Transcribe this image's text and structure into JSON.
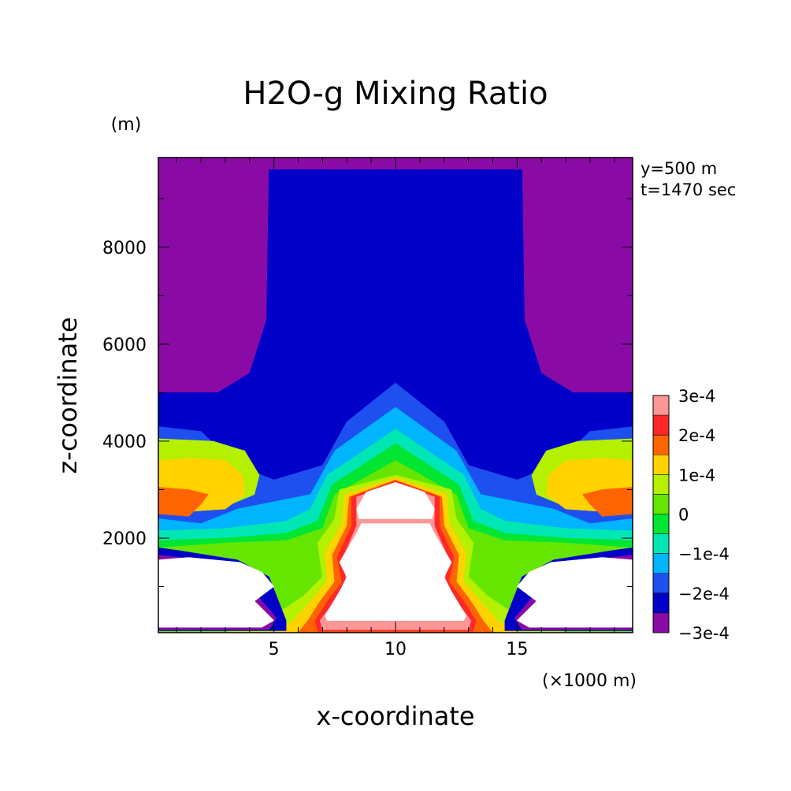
{
  "chart_data": {
    "type": "contour",
    "title": "H2O-g Mixing Ratio",
    "xlabel": "x-coordinate",
    "ylabel": "z-coordinate",
    "x_unit": "(×1000 m)",
    "y_unit": "(m)",
    "annotations": [
      "y=500 m",
      "t=1470 sec"
    ],
    "xlim": [
      0.25,
      19.75
    ],
    "ylim": [
      50,
      9850
    ],
    "x_ticks": [
      5,
      10,
      15
    ],
    "y_ticks": [
      2000,
      4000,
      6000,
      8000
    ],
    "levels": [
      -0.0003,
      -0.00025,
      -0.0002,
      -0.00015,
      -0.0001,
      -5e-05,
      0,
      5e-05,
      0.0001,
      0.00015,
      0.0002,
      0.00025,
      0.0003
    ],
    "colorbar_labels": [
      "3e-4",
      "2e-4",
      "1e-4",
      "0",
      "−1e-4",
      "−2e-4",
      "−3e-4"
    ],
    "colors": [
      "#8a0aa6",
      "#0000c8",
      "#1e50f0",
      "#00b4ff",
      "#00e6b4",
      "#00e632",
      "#64e600",
      "#b4f000",
      "#ffd200",
      "#ff6400",
      "#ff2828",
      "#ff9696"
    ],
    "grid": false,
    "legend": "colorbar-right",
    "regions": [
      {
        "level": 0,
        "points": [
          [
            0.25,
            50
          ],
          [
            19.75,
            50
          ],
          [
            19.75,
            9850
          ],
          [
            0.25,
            9850
          ]
        ]
      },
      {
        "level": 1,
        "points": [
          [
            0.25,
            50
          ],
          [
            19.75,
            50
          ],
          [
            19.75,
            5000
          ],
          [
            17.3,
            5000
          ],
          [
            16,
            5400
          ],
          [
            15.3,
            6500
          ],
          [
            15.2,
            9600
          ],
          [
            4.8,
            9600
          ],
          [
            4.7,
            6500
          ],
          [
            4,
            5400
          ],
          [
            2.7,
            5000
          ],
          [
            0.25,
            5000
          ]
        ]
      },
      {
        "level": 2,
        "points": [
          [
            0.25,
            50
          ],
          [
            19.75,
            50
          ],
          [
            19.75,
            4300
          ],
          [
            18,
            4200
          ],
          [
            16.5,
            3500
          ],
          [
            15,
            3200
          ],
          [
            13,
            3500
          ],
          [
            12,
            4400
          ],
          [
            10,
            5200
          ],
          [
            8,
            4400
          ],
          [
            7,
            3500
          ],
          [
            5,
            3200
          ],
          [
            3.5,
            3500
          ],
          [
            2,
            4200
          ],
          [
            0.25,
            4300
          ]
        ]
      },
      {
        "level": 3,
        "points": [
          [
            0.25,
            50
          ],
          [
            19.75,
            50
          ],
          [
            19.75,
            2400
          ],
          [
            18,
            2300
          ],
          [
            16.5,
            2600
          ],
          [
            13.5,
            2900
          ],
          [
            12.5,
            3800
          ],
          [
            10,
            4700
          ],
          [
            7.5,
            3800
          ],
          [
            6.5,
            2900
          ],
          [
            3.5,
            2600
          ],
          [
            2,
            2300
          ],
          [
            0.25,
            2400
          ]
        ]
      },
      {
        "level": 4,
        "points": [
          [
            0.25,
            50
          ],
          [
            19.75,
            50
          ],
          [
            19.75,
            2150
          ],
          [
            17,
            2200
          ],
          [
            14.5,
            2350
          ],
          [
            13.5,
            2600
          ],
          [
            12.8,
            3300
          ],
          [
            10,
            4250
          ],
          [
            7.2,
            3300
          ],
          [
            6.5,
            2600
          ],
          [
            5.5,
            2350
          ],
          [
            3,
            2200
          ],
          [
            0.25,
            2150
          ]
        ]
      },
      {
        "level": 5,
        "points": [
          [
            0.25,
            50
          ],
          [
            19.75,
            50
          ],
          [
            19.75,
            1950
          ],
          [
            17,
            2000
          ],
          [
            14.5,
            2100
          ],
          [
            13.2,
            2350
          ],
          [
            12.6,
            3100
          ],
          [
            10,
            3950
          ],
          [
            7.4,
            3100
          ],
          [
            6.8,
            2350
          ],
          [
            5.5,
            2100
          ],
          [
            3,
            2000
          ],
          [
            0.25,
            1950
          ]
        ]
      },
      {
        "level": 6,
        "points": [
          [
            0.25,
            50
          ],
          [
            19.75,
            50
          ],
          [
            19.75,
            1800
          ],
          [
            17,
            1900
          ],
          [
            14.5,
            1950
          ],
          [
            13,
            2200
          ],
          [
            12.5,
            2900
          ],
          [
            10,
            3600
          ],
          [
            7.5,
            2900
          ],
          [
            7,
            2200
          ],
          [
            5.5,
            1950
          ],
          [
            3,
            1900
          ],
          [
            0.25,
            1800
          ]
        ]
      },
      {
        "level": 7,
        "points": [
          [
            3,
            50
          ],
          [
            17,
            50
          ],
          [
            15,
            400
          ],
          [
            13.8,
            800
          ],
          [
            13,
            1200
          ],
          [
            13.2,
            1900
          ],
          [
            12.5,
            2400
          ],
          [
            12.3,
            3000
          ],
          [
            10,
            3300
          ],
          [
            7.7,
            3000
          ],
          [
            7.5,
            2400
          ],
          [
            6.8,
            1900
          ],
          [
            7,
            1200
          ],
          [
            6.2,
            800
          ],
          [
            5,
            400
          ]
        ]
      },
      {
        "level": 8,
        "points": [
          [
            5,
            50
          ],
          [
            15,
            50
          ],
          [
            14.2,
            300
          ],
          [
            13.5,
            700
          ],
          [
            12.8,
            1100
          ],
          [
            12.9,
            1700
          ],
          [
            12.2,
            2300
          ],
          [
            12.1,
            2900
          ],
          [
            10,
            3250
          ],
          [
            7.9,
            2900
          ],
          [
            7.8,
            2300
          ],
          [
            7.1,
            1700
          ],
          [
            7.2,
            1100
          ],
          [
            6.5,
            700
          ],
          [
            5.8,
            300
          ]
        ]
      },
      {
        "level": 9,
        "points": [
          [
            6,
            50
          ],
          [
            14,
            50
          ],
          [
            13.6,
            300
          ],
          [
            13.1,
            700
          ],
          [
            12.5,
            1100
          ],
          [
            12.6,
            1650
          ],
          [
            12,
            2250
          ],
          [
            11.9,
            2850
          ],
          [
            10,
            3200
          ],
          [
            8.1,
            2850
          ],
          [
            8,
            2250
          ],
          [
            7.4,
            1650
          ],
          [
            7.5,
            1100
          ],
          [
            6.9,
            700
          ],
          [
            6.4,
            300
          ]
        ]
      },
      {
        "level": 10,
        "points": [
          [
            6.8,
            80
          ],
          [
            13.2,
            80
          ],
          [
            13.3,
            300
          ],
          [
            12.8,
            700
          ],
          [
            12.2,
            1100
          ],
          [
            12.4,
            1600
          ],
          [
            11.8,
            2250
          ],
          [
            11.8,
            2850
          ],
          [
            10,
            3180
          ],
          [
            8.2,
            2850
          ],
          [
            8.2,
            2250
          ],
          [
            7.6,
            1600
          ],
          [
            7.8,
            1100
          ],
          [
            7.2,
            700
          ],
          [
            6.7,
            300
          ]
        ]
      },
      {
        "level": 11,
        "points": [
          [
            7,
            110
          ],
          [
            13,
            110
          ],
          [
            13.1,
            300
          ],
          [
            12.5,
            700
          ],
          [
            12,
            1100
          ],
          [
            12.2,
            1550
          ],
          [
            11.6,
            2250
          ],
          [
            11.6,
            2850
          ],
          [
            10,
            3140
          ],
          [
            8.4,
            2850
          ],
          [
            8.4,
            2250
          ],
          [
            7.8,
            1550
          ],
          [
            8,
            1100
          ],
          [
            7.5,
            700
          ],
          [
            6.9,
            300
          ]
        ]
      },
      {
        "level": 7,
        "points": [
          [
            0.25,
            2800
          ],
          [
            1.5,
            2650
          ],
          [
            3,
            2650
          ],
          [
            4.2,
            2900
          ],
          [
            4.4,
            3300
          ],
          [
            3.8,
            3800
          ],
          [
            2.5,
            4000
          ],
          [
            0.25,
            4050
          ]
        ]
      },
      {
        "level": 8,
        "points": [
          [
            0.25,
            2750
          ],
          [
            1.5,
            2550
          ],
          [
            3,
            2600
          ],
          [
            3.8,
            2900
          ],
          [
            3.7,
            3300
          ],
          [
            3,
            3600
          ],
          [
            1.5,
            3650
          ],
          [
            0.25,
            3600
          ]
        ]
      },
      {
        "level": 9,
        "points": [
          [
            0.25,
            2500
          ],
          [
            1.5,
            2450
          ],
          [
            2,
            2700
          ],
          [
            2.3,
            2900
          ],
          [
            1.5,
            3000
          ],
          [
            0.25,
            3050
          ]
        ]
      },
      {
        "level": 7,
        "points": [
          [
            19.75,
            2800
          ],
          [
            18.5,
            2650
          ],
          [
            17,
            2650
          ],
          [
            15.8,
            2900
          ],
          [
            15.6,
            3300
          ],
          [
            16.2,
            3800
          ],
          [
            17.5,
            4000
          ],
          [
            19.75,
            4050
          ]
        ]
      },
      {
        "level": 8,
        "points": [
          [
            19.75,
            2750
          ],
          [
            18.5,
            2550
          ],
          [
            17,
            2600
          ],
          [
            16.2,
            2900
          ],
          [
            16.3,
            3300
          ],
          [
            17,
            3600
          ],
          [
            18.5,
            3650
          ],
          [
            19.75,
            3600
          ]
        ]
      },
      {
        "level": 9,
        "points": [
          [
            19.75,
            2500
          ],
          [
            18.5,
            2450
          ],
          [
            18,
            2700
          ],
          [
            17.7,
            2900
          ],
          [
            18.5,
            3000
          ],
          [
            19.75,
            3050
          ]
        ]
      },
      {
        "level": 1,
        "points": [
          [
            0.25,
            90
          ],
          [
            5.5,
            90
          ],
          [
            5.5,
            300
          ],
          [
            4.8,
            1200
          ],
          [
            3.5,
            1550
          ],
          [
            1,
            1750
          ],
          [
            0.25,
            1800
          ]
        ]
      },
      {
        "level": 0,
        "points": [
          [
            0.25,
            110
          ],
          [
            4.8,
            110
          ],
          [
            5.1,
            350
          ],
          [
            4,
            1000
          ],
          [
            3.4,
            1450
          ],
          [
            2,
            1550
          ],
          [
            0.25,
            1650
          ]
        ]
      },
      {
        "level": 1,
        "points": [
          [
            19.75,
            90
          ],
          [
            14.5,
            90
          ],
          [
            14.5,
            300
          ],
          [
            15.2,
            1200
          ],
          [
            16.5,
            1550
          ],
          [
            19,
            1750
          ],
          [
            19.75,
            1800
          ]
        ]
      },
      {
        "level": 0,
        "points": [
          [
            19.75,
            110
          ],
          [
            15.2,
            110
          ],
          [
            14.9,
            350
          ],
          [
            16,
            1000
          ],
          [
            16.6,
            1450
          ],
          [
            18,
            1550
          ],
          [
            19.75,
            1650
          ]
        ]
      }
    ],
    "blank_regions": [
      {
        "points": [
          [
            0.25,
            160
          ],
          [
            4.5,
            160
          ],
          [
            5,
            300
          ],
          [
            4.2,
            700
          ],
          [
            5,
            1000
          ],
          [
            4.5,
            1300
          ],
          [
            3.6,
            1500
          ],
          [
            1.5,
            1600
          ],
          [
            0.25,
            1550
          ]
        ]
      },
      {
        "points": [
          [
            19.75,
            160
          ],
          [
            15.5,
            160
          ],
          [
            15,
            300
          ],
          [
            15.8,
            700
          ],
          [
            15,
            1000
          ],
          [
            15.5,
            1300
          ],
          [
            16.4,
            1500
          ],
          [
            18.5,
            1600
          ],
          [
            19.75,
            1550
          ]
        ]
      },
      {
        "points": [
          [
            7.2,
            300
          ],
          [
            12.8,
            300
          ],
          [
            12.9,
            400
          ],
          [
            12.3,
            900
          ],
          [
            12,
            1200
          ],
          [
            12.3,
            1500
          ],
          [
            11.6,
            2100
          ],
          [
            11.4,
            2300
          ],
          [
            8.6,
            2300
          ],
          [
            8.4,
            2100
          ],
          [
            7.7,
            1500
          ],
          [
            8,
            1200
          ],
          [
            7.7,
            900
          ],
          [
            7.1,
            400
          ]
        ]
      },
      {
        "points": [
          [
            8.5,
            2400
          ],
          [
            11.5,
            2400
          ],
          [
            11.6,
            2600
          ],
          [
            11.2,
            2950
          ],
          [
            10,
            3150
          ],
          [
            8.8,
            2950
          ],
          [
            8.4,
            2600
          ]
        ]
      }
    ]
  }
}
